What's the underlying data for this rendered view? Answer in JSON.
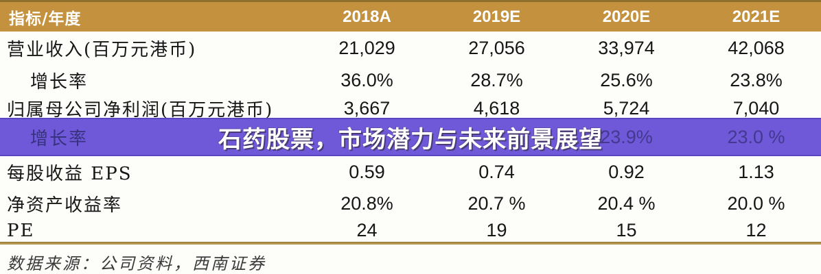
{
  "chart_data": {
    "type": "table",
    "title": "",
    "columns": [
      "指标/年度",
      "2018A",
      "2019E",
      "2020E",
      "2021E"
    ],
    "rows": [
      [
        "营业收入(百万元港币)",
        "21,029",
        "27,056",
        "33,974",
        "42,068"
      ],
      [
        "增长率",
        "36.0%",
        "28.7%",
        "25.6%",
        "23.8%"
      ],
      [
        "归属母公司净利润(百万元港币)",
        "3,667",
        "4,618",
        "5,724",
        "7,040"
      ],
      [
        "增长率",
        "",
        "",
        "23.9%",
        "23.0 %"
      ],
      [
        "每股收益 EPS",
        "0.59",
        "0.74",
        "0.92",
        "1.13"
      ],
      [
        "净资产收益率",
        "20.8%",
        "20.7 %",
        "20.4 %",
        "20.0 %"
      ],
      [
        "PE",
        "24",
        "19",
        "15",
        "12"
      ]
    ],
    "source_note": "数据来源：公司资料，西南证券"
  },
  "header": {
    "label": "指标/年度",
    "years": [
      "2018A",
      "2019E",
      "2020E",
      "2021E"
    ]
  },
  "rows": [
    {
      "label": "营业收入(百万元港币)",
      "values": [
        "21,029",
        "27,056",
        "33,974",
        "42,068"
      ]
    },
    {
      "label": "增长率",
      "values": [
        "36.0%",
        "28.7%",
        "25.6%",
        "23.8%"
      ]
    },
    {
      "label": "归属母公司净利润(百万元港币)",
      "values": [
        "3,667",
        "4,618",
        "5,724",
        "7,040"
      ]
    },
    {
      "label": "增长率",
      "values": [
        "",
        "",
        "23.9%",
        "23.0 %"
      ]
    },
    {
      "label": "每股收益 EPS",
      "values": [
        "0.59",
        "0.74",
        "0.92",
        "1.13"
      ]
    },
    {
      "label": "净资产收益率",
      "values": [
        "20.8%",
        "20.7 %",
        "20.4 %",
        "20.0 %"
      ]
    },
    {
      "label": "PE",
      "values": [
        "24",
        "19",
        "15",
        "12"
      ]
    }
  ],
  "banner": {
    "headline": "石药股票，市场潜力与未来前景展望",
    "background_color": "#7059d9",
    "text_color": "#ffffff"
  },
  "footer": {
    "source": "数据来源：公司资料，西南证券"
  },
  "colors": {
    "header_band": "#c4923f",
    "top_rule": "#8d6f2e",
    "bottom_rule": "#b3974f",
    "body_text": "#161616",
    "banner_purple": "#7059d9"
  }
}
